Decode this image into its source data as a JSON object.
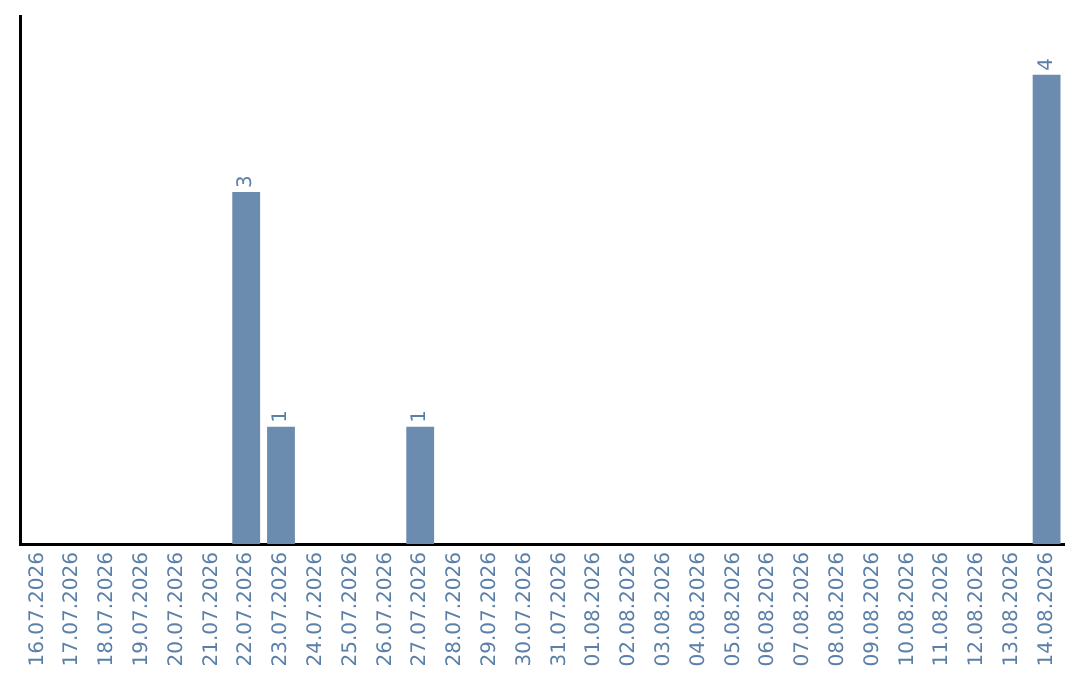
{
  "chart_data": {
    "type": "bar",
    "categories": [
      "16.07.2026",
      "17.07.2026",
      "18.07.2026",
      "19.07.2026",
      "20.07.2026",
      "21.07.2026",
      "22.07.2026",
      "23.07.2026",
      "24.07.2026",
      "25.07.2026",
      "26.07.2026",
      "27.07.2026",
      "28.07.2026",
      "29.07.2026",
      "30.07.2026",
      "31.07.2026",
      "01.08.2026",
      "02.08.2026",
      "03.08.2026",
      "04.08.2026",
      "05.08.2026",
      "06.08.2026",
      "07.08.2026",
      "08.08.2026",
      "09.08.2026",
      "10.08.2026",
      "11.08.2026",
      "12.08.2026",
      "13.08.2026",
      "14.08.2026"
    ],
    "values": [
      0,
      0,
      0,
      0,
      0,
      0,
      3,
      1,
      0,
      0,
      0,
      1,
      0,
      0,
      0,
      0,
      0,
      0,
      0,
      0,
      0,
      0,
      0,
      0,
      0,
      0,
      0,
      0,
      0,
      4
    ],
    "value_labels": [
      null,
      null,
      null,
      null,
      null,
      null,
      "3",
      "1",
      null,
      null,
      null,
      "1",
      null,
      null,
      null,
      null,
      null,
      null,
      null,
      null,
      null,
      null,
      null,
      null,
      null,
      null,
      null,
      null,
      null,
      "4"
    ],
    "color": "#6b8caf",
    "grid": false,
    "legend": false
  }
}
